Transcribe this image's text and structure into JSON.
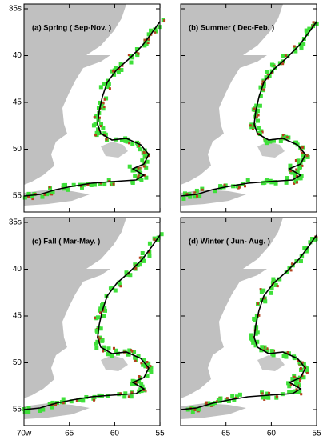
{
  "panels": [
    {
      "title": "(a) Spring ( Sep-Nov. )"
    },
    {
      "title": "(b) Summer ( Dec-Feb. )"
    },
    {
      "title": "(c) Fall ( Mar-May. )"
    },
    {
      "title": "(d) Winter ( Jun- Aug. )"
    }
  ],
  "latitude_labels": [
    "35s",
    "40",
    "45",
    "50",
    "55"
  ],
  "longitude_labels": [
    "70w",
    "65",
    "60",
    "55"
  ]
}
